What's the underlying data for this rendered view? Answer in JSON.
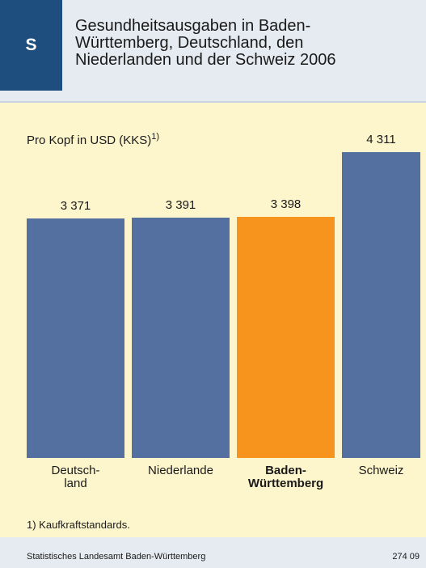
{
  "chart_data": {
    "type": "bar",
    "badge": "S",
    "title": "Gesundheitsausgaben in Baden-\nWürttemberg, Deutschland, den\nNiederlanden und der Schweiz 2006",
    "subtitle": "Pro Kopf in USD (KKS)",
    "subtitle_note": "1)",
    "categories": [
      "Deutsch-\nland",
      "Niederlande",
      "Baden-\nWürttemberg",
      "Schweiz"
    ],
    "values": [
      3371,
      3391,
      3398,
      4311
    ],
    "value_labels": [
      "3 371",
      "3 391",
      "3 398",
      "4 311"
    ],
    "colors": [
      "#5470a0",
      "#5470a0",
      "#f7941d",
      "#5470a0"
    ],
    "bold_categories": [
      false,
      false,
      true,
      false
    ],
    "footnote": "1) Kaufkraftstandards.",
    "source": "Statistisches Landesamt Baden-Württemberg",
    "code": "274 09"
  }
}
